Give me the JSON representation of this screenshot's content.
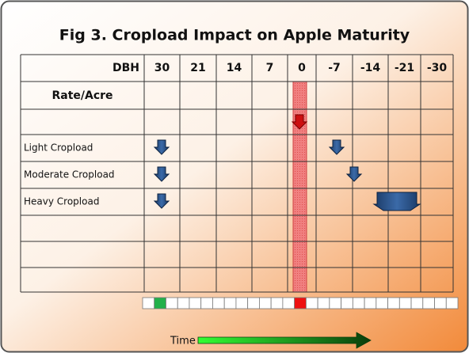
{
  "title": "Fig 3. Cropload Impact on Apple Maturity",
  "table": {
    "header": {
      "label": "DBH",
      "columns": [
        "30",
        "21",
        "14",
        "7",
        "0",
        "-7",
        "-14",
        "-21",
        "-30"
      ]
    },
    "rate_label": "Rate/Acre",
    "row_labels": [
      "Light Cropload",
      "Moderate Cropload",
      "Heavy Cropload"
    ]
  },
  "time_label": "Time"
}
